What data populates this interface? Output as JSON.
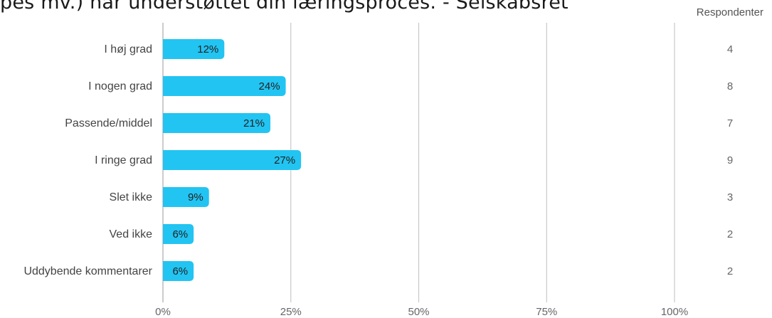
{
  "title": "pes mv.) har understøttet din læringsproces. - Selskabsret",
  "respondents_header": "Respondenter",
  "colors": {
    "bar": "#22c4f2",
    "grid": "#c8c8c8",
    "axis": "#bbbbbb"
  },
  "chart_data": {
    "type": "bar",
    "orientation": "horizontal",
    "categories": [
      "I høj grad",
      "I nogen grad",
      "Passende/middel",
      "I ringe grad",
      "Slet ikke",
      "Ved ikke",
      "Uddybende kommentarer"
    ],
    "values": [
      12,
      24,
      21,
      27,
      9,
      6,
      6
    ],
    "value_labels": [
      "12%",
      "24%",
      "21%",
      "27%",
      "9%",
      "6%",
      "6%"
    ],
    "respondents": [
      4,
      8,
      7,
      9,
      3,
      2,
      2
    ],
    "x_ticks": [
      0,
      25,
      50,
      75,
      100
    ],
    "x_tick_labels": [
      "0%",
      "25%",
      "50%",
      "75%",
      "100%"
    ],
    "xlim": [
      0,
      100
    ],
    "grid": true
  }
}
